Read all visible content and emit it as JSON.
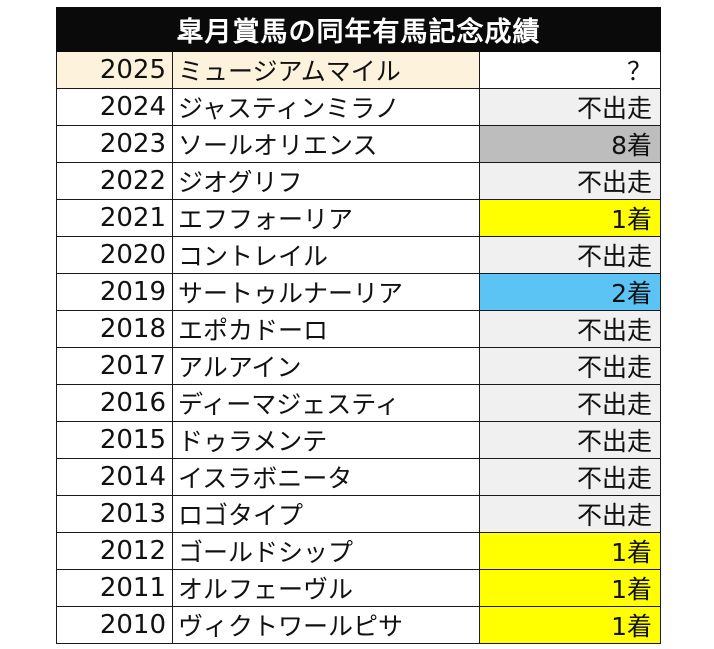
{
  "title": "皐月賞馬の同年有馬記念成績",
  "colors": {
    "header_bg": "#0a0a0a",
    "header_text": "#ffffff",
    "current_year_row": "#fdf2dc",
    "did_not_run": "#f0f0f0",
    "eighth": "#bdbdbd",
    "win": "#ffff00",
    "second": "#5bc4f5",
    "pending": "#ffffff"
  },
  "rows": [
    {
      "year": "2025",
      "horse": "ミュージアムマイル",
      "result": "？",
      "row_color": "#fdf2dc",
      "result_color": "#ffffff"
    },
    {
      "year": "2024",
      "horse": "ジャスティンミラノ",
      "result": "不出走",
      "row_color": "#ffffff",
      "result_color": "#f0f0f0"
    },
    {
      "year": "2023",
      "horse": "ソールオリエンス",
      "result": "8着",
      "row_color": "#ffffff",
      "result_color": "#bdbdbd"
    },
    {
      "year": "2022",
      "horse": "ジオグリフ",
      "result": "不出走",
      "row_color": "#ffffff",
      "result_color": "#f0f0f0"
    },
    {
      "year": "2021",
      "horse": "エフフォーリア",
      "result": "1着",
      "row_color": "#ffffff",
      "result_color": "#ffff00"
    },
    {
      "year": "2020",
      "horse": "コントレイル",
      "result": "不出走",
      "row_color": "#ffffff",
      "result_color": "#f0f0f0"
    },
    {
      "year": "2019",
      "horse": "サートゥルナーリア",
      "result": "2着",
      "row_color": "#ffffff",
      "result_color": "#5bc4f5"
    },
    {
      "year": "2018",
      "horse": "エポカドーロ",
      "result": "不出走",
      "row_color": "#ffffff",
      "result_color": "#f0f0f0"
    },
    {
      "year": "2017",
      "horse": "アルアイン",
      "result": "不出走",
      "row_color": "#ffffff",
      "result_color": "#f0f0f0"
    },
    {
      "year": "2016",
      "horse": "ディーマジェスティ",
      "result": "不出走",
      "row_color": "#ffffff",
      "result_color": "#f0f0f0"
    },
    {
      "year": "2015",
      "horse": "ドゥラメンテ",
      "result": "不出走",
      "row_color": "#ffffff",
      "result_color": "#f0f0f0"
    },
    {
      "year": "2014",
      "horse": "イスラボニータ",
      "result": "不出走",
      "row_color": "#ffffff",
      "result_color": "#f0f0f0"
    },
    {
      "year": "2013",
      "horse": "ロゴタイプ",
      "result": "不出走",
      "row_color": "#ffffff",
      "result_color": "#f0f0f0"
    },
    {
      "year": "2012",
      "horse": "ゴールドシップ",
      "result": "1着",
      "row_color": "#ffffff",
      "result_color": "#ffff00"
    },
    {
      "year": "2011",
      "horse": "オルフェーヴル",
      "result": "1着",
      "row_color": "#ffffff",
      "result_color": "#ffff00"
    },
    {
      "year": "2010",
      "horse": "ヴィクトワールピサ",
      "result": "1着",
      "row_color": "#ffffff",
      "result_color": "#ffff00"
    }
  ]
}
